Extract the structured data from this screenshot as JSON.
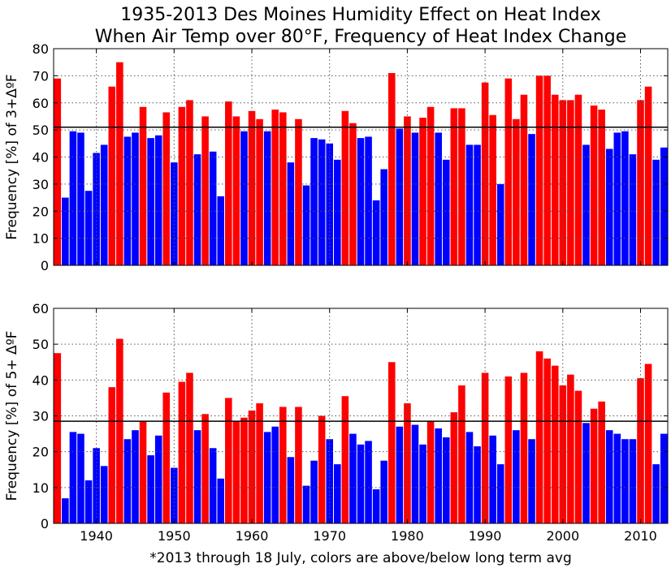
{
  "title_line1": "1935-2013 Des Moines Humidity Effect on Heat Index",
  "title_line2": "When Air Temp over 80°F, Frequency of Heat Index Change",
  "footnote": "*2013 through 18 July, colors are above/below long term avg",
  "colors": {
    "above": "#ff0000",
    "below": "#0000ff",
    "avg_line": "#000000",
    "grid": "#555555"
  },
  "chart_data": [
    {
      "type": "bar",
      "ylabel": "Frequency [%] of 3+ΔºF",
      "ylim": [
        0,
        80
      ],
      "yticks": [
        "0",
        "10",
        "20",
        "30",
        "40",
        "50",
        "60",
        "70",
        "80"
      ],
      "xlim": [
        1934.5,
        2013.5
      ],
      "xticks": [],
      "grid": true,
      "average": 51,
      "x": [
        1935,
        1936,
        1937,
        1938,
        1939,
        1940,
        1941,
        1942,
        1943,
        1944,
        1945,
        1946,
        1947,
        1948,
        1949,
        1950,
        1951,
        1952,
        1953,
        1954,
        1955,
        1956,
        1957,
        1958,
        1959,
        1960,
        1961,
        1962,
        1963,
        1964,
        1965,
        1966,
        1967,
        1968,
        1969,
        1970,
        1971,
        1972,
        1973,
        1974,
        1975,
        1976,
        1977,
        1978,
        1979,
        1980,
        1981,
        1982,
        1983,
        1984,
        1985,
        1986,
        1987,
        1988,
        1989,
        1990,
        1991,
        1992,
        1993,
        1994,
        1995,
        1996,
        1997,
        1998,
        1999,
        2000,
        2001,
        2002,
        2003,
        2004,
        2005,
        2006,
        2007,
        2008,
        2009,
        2010,
        2011,
        2012,
        2013
      ],
      "values": [
        69,
        25,
        49.5,
        49,
        27.5,
        41.5,
        44.5,
        66,
        75,
        47.5,
        49,
        58.5,
        47,
        48,
        56.5,
        38,
        58.5,
        61,
        41,
        55,
        42,
        25.5,
        60.5,
        55,
        49.5,
        57,
        54,
        49.5,
        57.5,
        56.5,
        38,
        54,
        29.5,
        47,
        46.5,
        45,
        39,
        57,
        52.5,
        47,
        47.5,
        24,
        35.5,
        71,
        50.5,
        55,
        49,
        54.5,
        58.5,
        49,
        39,
        58,
        58,
        44.5,
        44.5,
        67.5,
        55.5,
        30,
        69,
        54,
        63,
        48.5,
        70,
        70,
        63,
        61,
        61,
        63,
        44.5,
        59,
        57.5,
        43,
        49,
        49.5,
        41,
        61,
        66,
        39,
        43.5
      ]
    },
    {
      "type": "bar",
      "ylabel": "Frequency [%] of 5+ ΔºF",
      "ylim": [
        0,
        60
      ],
      "yticks": [
        "0",
        "10",
        "20",
        "30",
        "40",
        "50",
        "60"
      ],
      "xlim": [
        1934.5,
        2013.5
      ],
      "xticks": [
        "1940",
        "1950",
        "1960",
        "1970",
        "1980",
        "1990",
        "2000",
        "2010"
      ],
      "grid": true,
      "average": 28.5,
      "x": [
        1935,
        1936,
        1937,
        1938,
        1939,
        1940,
        1941,
        1942,
        1943,
        1944,
        1945,
        1946,
        1947,
        1948,
        1949,
        1950,
        1951,
        1952,
        1953,
        1954,
        1955,
        1956,
        1957,
        1958,
        1959,
        1960,
        1961,
        1962,
        1963,
        1964,
        1965,
        1966,
        1967,
        1968,
        1969,
        1970,
        1971,
        1972,
        1973,
        1974,
        1975,
        1976,
        1977,
        1978,
        1979,
        1980,
        1981,
        1982,
        1983,
        1984,
        1985,
        1986,
        1987,
        1988,
        1989,
        1990,
        1991,
        1992,
        1993,
        1994,
        1995,
        1996,
        1997,
        1998,
        1999,
        2000,
        2001,
        2002,
        2003,
        2004,
        2005,
        2006,
        2007,
        2008,
        2009,
        2010,
        2011,
        2012,
        2013
      ],
      "values": [
        47.5,
        7,
        25.5,
        25,
        12,
        21,
        16,
        38,
        51.5,
        23.5,
        26,
        28.5,
        19,
        24.5,
        36.5,
        15.5,
        39.5,
        42,
        26,
        30.5,
        21,
        12.5,
        35,
        28.5,
        29.5,
        31.5,
        33.5,
        25.5,
        27,
        32.5,
        18.5,
        32.5,
        10.5,
        17.5,
        30,
        23.5,
        16.5,
        35.5,
        25,
        22,
        23,
        9.5,
        17.5,
        45,
        27,
        33.5,
        27.5,
        22,
        28.5,
        26.5,
        24,
        31,
        38.5,
        25.5,
        21.5,
        42,
        24.5,
        16.5,
        41,
        26,
        42,
        23.5,
        48,
        46,
        44,
        38.5,
        41.5,
        37,
        28,
        32,
        34,
        26,
        25,
        23.5,
        23.5,
        40.5,
        44.5,
        16.5,
        25
      ]
    }
  ]
}
